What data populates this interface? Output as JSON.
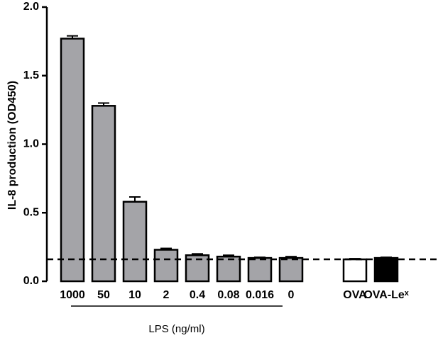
{
  "chart_data": {
    "type": "bar",
    "y_label": "IL-8 production (OD450)",
    "group_label": "LPS (ng/ml)",
    "categories": [
      "1000",
      "50",
      "10",
      "2",
      "0.4",
      "0.08",
      "0.016",
      "0",
      "OVA",
      "OVA-Leˣ"
    ],
    "values": [
      1.77,
      1.28,
      0.58,
      0.23,
      0.19,
      0.18,
      0.17,
      0.17,
      0.16,
      0.17
    ],
    "errors": [
      0.02,
      0.02,
      0.035,
      0.01,
      0.01,
      0.01,
      0.005,
      0.01,
      0.005,
      0.005
    ],
    "colors": [
      "#a4a4a8",
      "#a4a4a8",
      "#a4a4a8",
      "#a4a4a8",
      "#a4a4a8",
      "#a4a4a8",
      "#a4a4a8",
      "#a4a4a8",
      "#ffffff",
      "#000000"
    ],
    "reference_line": 0.16,
    "ylim": [
      0,
      2.0
    ],
    "yticks": [
      {
        "value": 0,
        "label": "0.0"
      },
      0.5,
      {
        "value": 1,
        "label": "1.0"
      },
      1.5,
      {
        "value": 2,
        "label": "2.0"
      }
    ]
  }
}
